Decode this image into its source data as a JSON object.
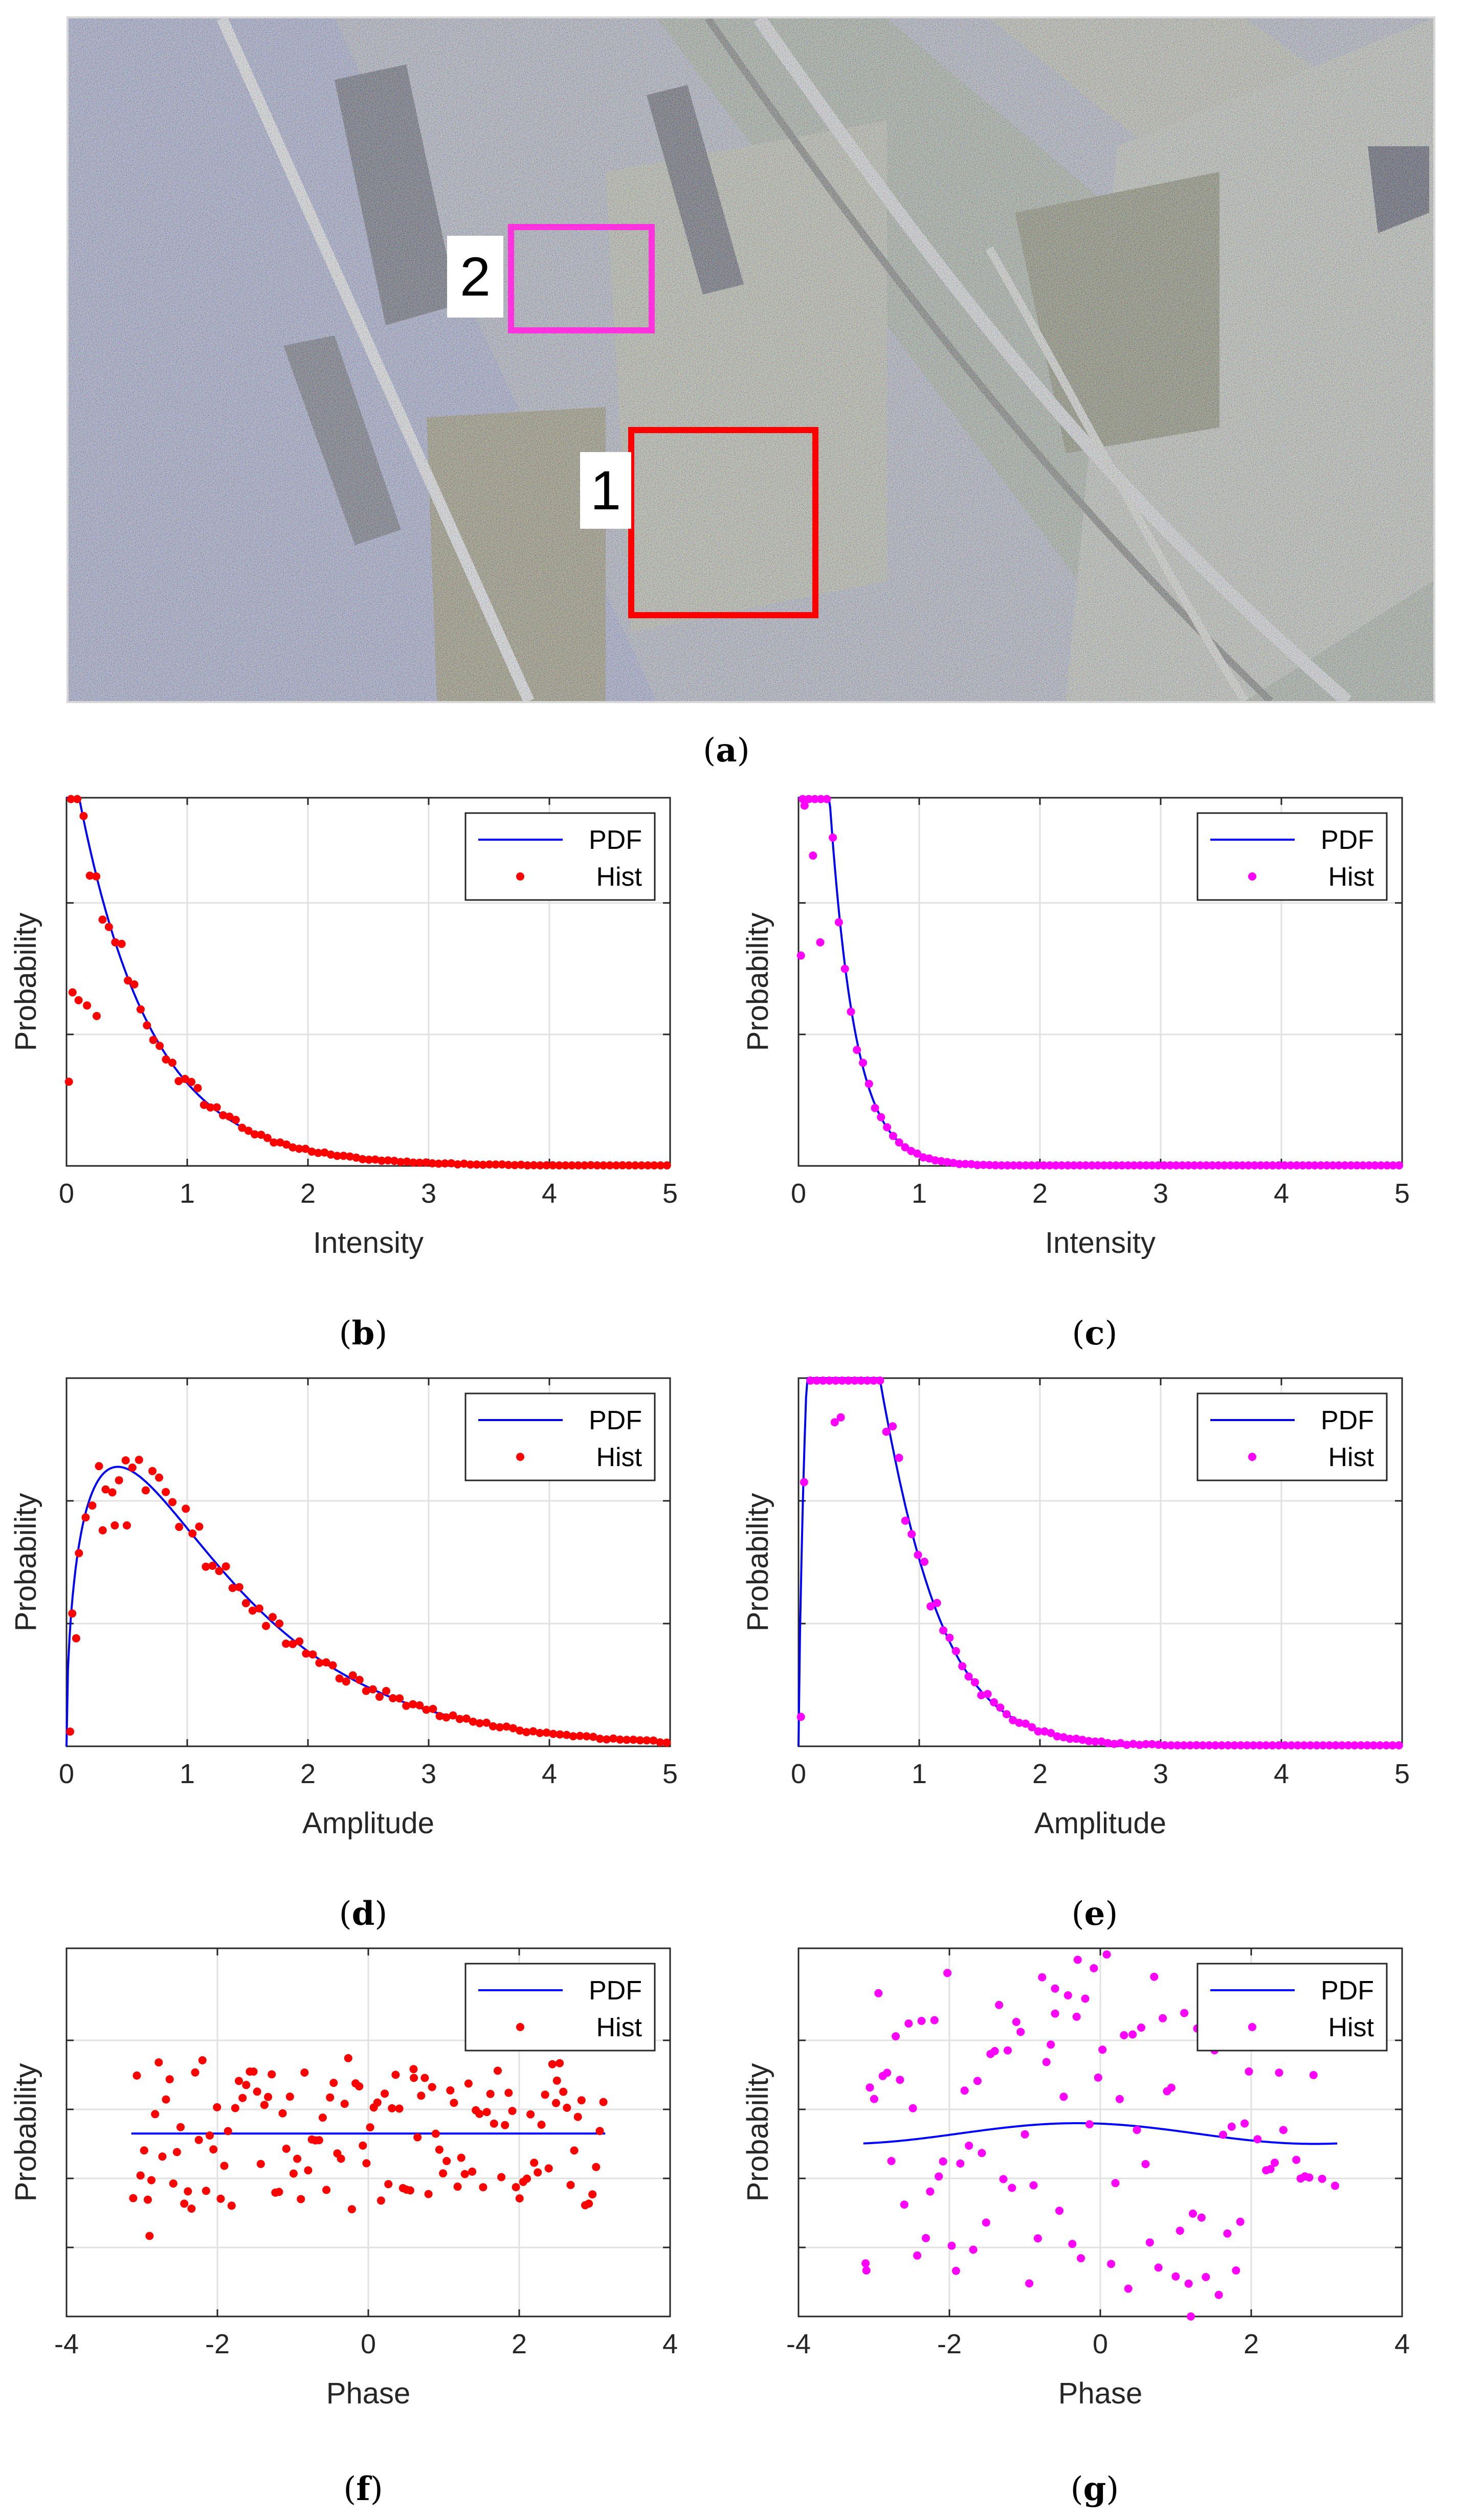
{
  "figure": {
    "panel_a": {
      "caption": "a",
      "regions": [
        {
          "label": "1",
          "color": "#ff0000"
        },
        {
          "label": "2",
          "color": "#ff33dd"
        }
      ]
    }
  },
  "chart_data": [
    {
      "panel": "b",
      "type": "line+scatter",
      "title": "",
      "xlabel": "Intensity",
      "ylabel": "Probability",
      "xlim": [
        0,
        5
      ],
      "ylim": [
        0,
        1.4
      ],
      "xticks": [
        0,
        1,
        2,
        3,
        4,
        5
      ],
      "yticks": [
        0.5,
        1.0
      ],
      "series": [
        {
          "name": "PDF",
          "kind": "line",
          "color": "#0000ff",
          "model": "exp",
          "params": {
            "mean": 0.6
          }
        },
        {
          "name": "Hist",
          "kind": "points",
          "color": "#ff0000",
          "model": "exp",
          "params": {
            "mean": 0.6
          },
          "x_range": [
            0.01,
            5.0
          ],
          "n": 95,
          "noise": 0.05,
          "extra_points": [
            [
              0.02,
              0.32
            ],
            [
              0.05,
              0.66
            ],
            [
              0.1,
              0.63
            ],
            [
              0.17,
              0.61
            ],
            [
              0.25,
              0.57
            ]
          ]
        }
      ],
      "legend": "top-right"
    },
    {
      "panel": "c",
      "type": "line+scatter",
      "title": "",
      "xlabel": "Intensity",
      "ylabel": "Probability",
      "xlim": [
        0,
        5
      ],
      "ylim": [
        0,
        1.4
      ],
      "xticks": [
        0,
        1,
        2,
        3,
        4,
        5
      ],
      "yticks": [
        0.5,
        1.0
      ],
      "series": [
        {
          "name": "PDF",
          "kind": "line",
          "color": "#0000ff",
          "model": "exp",
          "params": {
            "mean": 0.21
          }
        },
        {
          "name": "Hist",
          "kind": "points",
          "color": "#ff00ff",
          "model": "exp",
          "params": {
            "mean": 0.21
          },
          "x_range": [
            0.01,
            5.0
          ],
          "n": 100,
          "noise": 0.04,
          "extra_points": [
            [
              0.02,
              0.8
            ],
            [
              0.05,
              1.37
            ],
            [
              0.12,
              1.18
            ],
            [
              0.18,
              0.85
            ]
          ]
        }
      ],
      "legend": "top-right"
    },
    {
      "panel": "d",
      "type": "line+scatter",
      "title": "",
      "xlabel": "Amplitude",
      "ylabel": "Probability",
      "xlim": [
        0,
        5
      ],
      "ylim": [
        0,
        0.75
      ],
      "xticks": [
        0,
        1,
        2,
        3,
        4,
        5
      ],
      "yticks": [
        0.25,
        0.5
      ],
      "series": [
        {
          "name": "PDF",
          "kind": "line",
          "color": "#0000ff",
          "model": "gamma",
          "params": {
            "k": 1.5,
            "theta": 0.85
          }
        },
        {
          "name": "Hist",
          "kind": "points",
          "color": "#ff0000",
          "model": "gamma",
          "params": {
            "k": 1.5,
            "theta": 0.85
          },
          "x_range": [
            0.02,
            5.0
          ],
          "n": 90,
          "noise": 0.05,
          "extra_points": [
            [
              0.03,
              0.03
            ],
            [
              0.08,
              0.22
            ],
            [
              0.3,
              0.44
            ],
            [
              0.4,
              0.45
            ],
            [
              0.5,
              0.45
            ]
          ]
        }
      ],
      "legend": "top-right"
    },
    {
      "panel": "e",
      "type": "line+scatter",
      "title": "",
      "xlabel": "Amplitude",
      "ylabel": "Probability",
      "xlim": [
        0,
        5
      ],
      "ylim": [
        0,
        0.75
      ],
      "xticks": [
        0,
        1,
        2,
        3,
        4,
        5
      ],
      "yticks": [
        0.25,
        0.5
      ],
      "series": [
        {
          "name": "PDF",
          "kind": "line",
          "color": "#0000ff",
          "model": "gamma",
          "params": {
            "k": 1.8,
            "theta": 0.33
          }
        },
        {
          "name": "Hist",
          "kind": "points",
          "color": "#ff00ff",
          "model": "gamma",
          "params": {
            "k": 1.8,
            "theta": 0.33
          },
          "x_range": [
            0.02,
            5.0
          ],
          "n": 95,
          "noise": 0.05,
          "extra_points": [
            [
              0.02,
              0.06
            ],
            [
              0.3,
              0.66
            ],
            [
              0.35,
              0.67
            ]
          ]
        }
      ],
      "legend": "top-right"
    },
    {
      "panel": "f",
      "type": "line+scatter",
      "title": "",
      "xlabel": "Phase",
      "ylabel": "Probability",
      "xlim": [
        -4,
        4
      ],
      "ylim": [
        0,
        0.32
      ],
      "xticks": [
        -4,
        -2,
        0,
        2,
        4
      ],
      "yticks": [
        0.06,
        0.12,
        0.18,
        0.24
      ],
      "series": [
        {
          "name": "PDF",
          "kind": "line",
          "color": "#0000ff",
          "model": "flat",
          "params": {
            "level": 0.159,
            "range": [
              -3.14,
              3.14
            ],
            "amp": 0.0
          }
        },
        {
          "name": "Hist",
          "kind": "points",
          "color": "#ff0000",
          "model": "flat",
          "params": {
            "level": 0.159,
            "range": [
              -3.14,
              3.14
            ],
            "amp": 0.0
          },
          "x_range": [
            -3.14,
            3.14
          ],
          "n": 130,
          "noise": 0.13,
          "extra_points": [
            [
              -2.9,
              0.07
            ],
            [
              0.6,
              0.215
            ],
            [
              2.5,
              0.205
            ]
          ]
        }
      ],
      "legend": "top-right"
    },
    {
      "panel": "g",
      "type": "line+scatter",
      "title": "",
      "xlabel": "Phase",
      "ylabel": "Probability",
      "xlim": [
        -4,
        4
      ],
      "ylim": [
        0,
        0.32
      ],
      "xticks": [
        -4,
        -2,
        0,
        2,
        4
      ],
      "yticks": [
        0.06,
        0.12,
        0.18,
        0.24
      ],
      "series": [
        {
          "name": "PDF",
          "kind": "line",
          "color": "#0000ff",
          "model": "flat",
          "params": {
            "level": 0.159,
            "range": [
              -3.14,
              3.14
            ],
            "amp": 0.009,
            "center": -0.3
          }
        },
        {
          "name": "Hist",
          "kind": "points",
          "color": "#ff00ff",
          "model": "flat",
          "params": {
            "level": 0.159,
            "range": [
              -3.14,
              3.14
            ],
            "amp": 0.009,
            "center": -0.3
          },
          "x_range": [
            -3.14,
            3.14
          ],
          "n": 110,
          "noise": 0.28,
          "extra_points": [
            [
              -0.3,
              0.31
            ],
            [
              -0.6,
              0.285
            ],
            [
              1.2,
              0.0
            ],
            [
              -3.1,
              0.04
            ]
          ]
        }
      ],
      "legend": "top-right"
    }
  ],
  "captions": {
    "b": "b",
    "c": "c",
    "d": "d",
    "e": "e",
    "f": "f",
    "g": "g"
  }
}
